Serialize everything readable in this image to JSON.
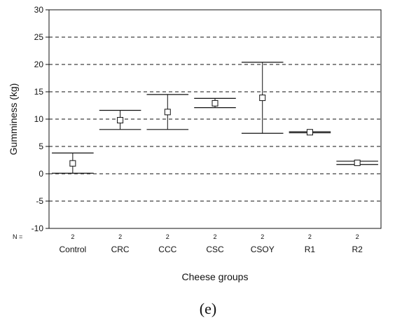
{
  "chart_data": {
    "type": "errorbar",
    "categories": [
      "Control",
      "CRC",
      "CCC",
      "CSC",
      "CSOY",
      "R1",
      "R2"
    ],
    "means": [
      1.9,
      9.8,
      11.3,
      12.9,
      13.9,
      7.6,
      2.0
    ],
    "upper": [
      3.8,
      11.6,
      14.5,
      13.8,
      20.4,
      7.7,
      2.3
    ],
    "lower": [
      0.1,
      8.1,
      8.1,
      12.1,
      7.4,
      7.5,
      1.7
    ],
    "n_label": "N =",
    "n_values": [
      "2",
      "2",
      "2",
      "2",
      "2",
      "2",
      "2"
    ],
    "ylabel": "Gumminess (kg)",
    "xlabel": "Cheese groups",
    "ylim": [
      -10,
      30
    ],
    "yticks": [
      -10,
      -5,
      0,
      5,
      10,
      15,
      20,
      25,
      30
    ],
    "ytick_labels": [
      "-10",
      "-5",
      "0",
      "5",
      "10",
      "15",
      "20",
      "25",
      "30"
    ],
    "grid": "dashed horizontal",
    "panel_label": "(e)"
  }
}
